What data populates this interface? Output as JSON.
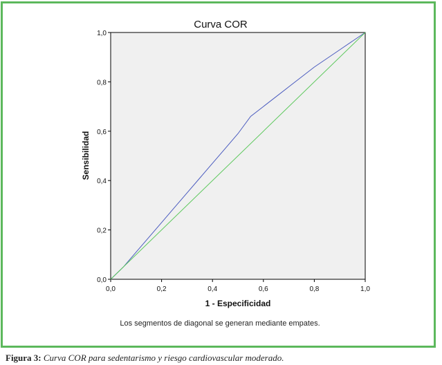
{
  "caption": {
    "label": "Figura 3:",
    "text": "Curva COR para sedentarismo y riesgo cardiovascular moderado."
  },
  "chart_data": {
    "type": "line",
    "title": "Curva COR",
    "xlabel": "1 - Especificidad",
    "ylabel": "Sensibilidad",
    "xlim": [
      0,
      1
    ],
    "ylim": [
      0,
      1
    ],
    "x_ticks": [
      "0,0",
      "0,2",
      "0,4",
      "0,6",
      "0,8",
      "1,0"
    ],
    "y_ticks": [
      "0,0",
      "0,2",
      "0,4",
      "0,6",
      "0,8",
      "1,0"
    ],
    "note": "Los segmentos de diagonal se generan mediante empates.",
    "grid": false,
    "background": "#f0f0f0",
    "series": [
      {
        "color": "#4a5bbf",
        "x": [
          0,
          0.05,
          0.1,
          0.15,
          0.2,
          0.25,
          0.3,
          0.35,
          0.4,
          0.45,
          0.5,
          0.55,
          0.6,
          0.65,
          0.7,
          0.75,
          0.8,
          0.85,
          0.9,
          0.95,
          1
        ],
        "y": [
          0,
          0.05,
          0.11,
          0.17,
          0.23,
          0.29,
          0.35,
          0.41,
          0.47,
          0.53,
          0.59,
          0.66,
          0.7,
          0.74,
          0.78,
          0.82,
          0.86,
          0.895,
          0.93,
          0.965,
          1
        ]
      },
      {
        "color": "#5cc85c",
        "x": [
          0,
          1
        ],
        "y": [
          0,
          1
        ]
      }
    ]
  }
}
